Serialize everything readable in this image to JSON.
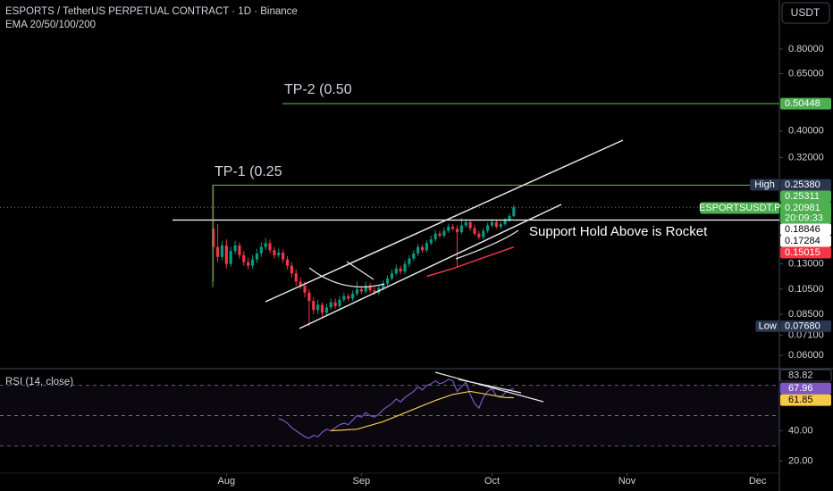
{
  "chart_data": {
    "type": "candlestick",
    "title": "ESPORTS / TetherUS PERPETUAL CONTRACT · 1D · Binance",
    "indicator": "EMA 20/50/100/200",
    "currency": "USDT",
    "log": true,
    "up_color": "#089981",
    "down_color": "#f23645",
    "xlim": [
      -49,
      130
    ],
    "xticks": [
      {
        "value": 3,
        "label": "Aug"
      },
      {
        "value": 34,
        "label": "Sep"
      },
      {
        "value": 64,
        "label": "Oct"
      },
      {
        "value": 95,
        "label": "Nov"
      },
      {
        "value": 125,
        "label": "Dec"
      }
    ],
    "ylim": [
      0.054,
      1.212
    ],
    "yticks": [
      {
        "value": 0.8,
        "label": "0.80000"
      },
      {
        "value": 0.65,
        "label": "0.65000"
      },
      {
        "value": 0.4,
        "label": "0.40000"
      },
      {
        "value": 0.32,
        "label": "0.32000"
      },
      {
        "value": 0.13,
        "label": "0.13000"
      },
      {
        "value": 0.105,
        "label": "0.10500"
      },
      {
        "value": 0.085,
        "label": "0.08500"
      },
      {
        "value": 0.071,
        "label": "0.07100"
      },
      {
        "value": 0.06,
        "label": "0.06000"
      }
    ],
    "categories": [
      null,
      null,
      null,
      null,
      null,
      null,
      null,
      null,
      null,
      null,
      null,
      null,
      null,
      null,
      null,
      null,
      null,
      null,
      null,
      null,
      null,
      null,
      null,
      null,
      null,
      null,
      null,
      null,
      null,
      null,
      null,
      null,
      null,
      null,
      null,
      null,
      null,
      null,
      null,
      null,
      null,
      null,
      null,
      null,
      null,
      null,
      null,
      null,
      null,
      null,
      null,
      null,
      null,
      null,
      null,
      null,
      null,
      null,
      null,
      null,
      null,
      null,
      null,
      null,
      null,
      null,
      null,
      null,
      null,
      null
    ],
    "open": [
      0.175,
      0.15,
      0.138,
      0.152,
      0.13,
      0.145,
      0.152,
      0.14,
      0.132,
      0.128,
      0.135,
      0.142,
      0.15,
      0.155,
      0.146,
      0.14,
      0.143,
      0.135,
      0.128,
      0.12,
      0.112,
      0.108,
      0.102,
      0.095,
      0.088,
      0.092,
      0.086,
      0.09,
      0.094,
      0.091,
      0.096,
      0.099,
      0.097,
      0.101,
      0.105,
      0.103,
      0.108,
      0.104,
      0.102,
      0.106,
      0.11,
      0.115,
      0.12,
      0.125,
      0.122,
      0.13,
      0.136,
      0.142,
      0.15,
      0.146,
      0.155,
      0.16,
      0.168,
      0.165,
      0.172,
      0.178,
      0.175,
      0.17,
      0.18,
      0.185,
      0.176,
      0.168,
      0.163,
      0.172,
      0.18,
      0.185,
      0.178,
      0.182,
      0.188,
      0.195
    ],
    "high": [
      0.2538,
      0.182,
      0.158,
      0.16,
      0.15,
      0.158,
      0.156,
      0.145,
      0.137,
      0.14,
      0.148,
      0.156,
      0.162,
      0.16,
      0.15,
      0.148,
      0.147,
      0.139,
      0.132,
      0.124,
      0.116,
      0.112,
      0.105,
      0.098,
      0.096,
      0.094,
      0.093,
      0.097,
      0.097,
      0.099,
      0.102,
      0.101,
      0.104,
      0.112,
      0.108,
      0.112,
      0.111,
      0.107,
      0.109,
      0.113,
      0.118,
      0.124,
      0.129,
      0.128,
      0.134,
      0.14,
      0.146,
      0.154,
      0.153,
      0.159,
      0.165,
      0.173,
      0.172,
      0.177,
      0.183,
      0.182,
      0.18,
      0.192,
      0.19,
      0.189,
      0.181,
      0.172,
      0.176,
      0.184,
      0.19,
      0.189,
      0.186,
      0.192,
      0.199,
      0.214
    ],
    "low": [
      0.112,
      0.132,
      0.134,
      0.125,
      0.127,
      0.141,
      0.136,
      0.128,
      0.124,
      0.125,
      0.131,
      0.138,
      0.146,
      0.142,
      0.136,
      0.137,
      0.131,
      0.124,
      0.116,
      0.108,
      0.105,
      0.098,
      0.0768,
      0.085,
      0.085,
      0.083,
      0.084,
      0.088,
      0.089,
      0.089,
      0.094,
      0.095,
      0.095,
      0.099,
      0.101,
      0.101,
      0.102,
      0.1,
      0.1,
      0.104,
      0.108,
      0.113,
      0.118,
      0.119,
      0.119,
      0.127,
      0.133,
      0.139,
      0.143,
      0.143,
      0.152,
      0.157,
      0.162,
      0.162,
      0.169,
      0.172,
      0.126,
      0.167,
      0.177,
      0.172,
      0.165,
      0.16,
      0.16,
      0.169,
      0.177,
      0.175,
      0.175,
      0.179,
      0.185,
      0.193
    ],
    "close": [
      0.15,
      0.138,
      0.152,
      0.13,
      0.145,
      0.152,
      0.14,
      0.132,
      0.128,
      0.135,
      0.142,
      0.15,
      0.155,
      0.146,
      0.14,
      0.143,
      0.135,
      0.128,
      0.12,
      0.112,
      0.108,
      0.102,
      0.095,
      0.088,
      0.092,
      0.086,
      0.09,
      0.094,
      0.091,
      0.096,
      0.099,
      0.097,
      0.101,
      0.105,
      0.103,
      0.108,
      0.104,
      0.102,
      0.106,
      0.11,
      0.115,
      0.12,
      0.125,
      0.122,
      0.13,
      0.136,
      0.142,
      0.15,
      0.146,
      0.155,
      0.16,
      0.168,
      0.165,
      0.172,
      0.178,
      0.175,
      0.17,
      0.18,
      0.185,
      0.176,
      0.168,
      0.163,
      0.172,
      0.18,
      0.185,
      0.178,
      0.182,
      0.188,
      0.195,
      0.20981
    ],
    "ema": {
      "color": "#f23645",
      "x": [
        49,
        55,
        62,
        69
      ],
      "values": [
        0.117,
        0.125,
        0.137,
        0.15
      ]
    },
    "levels": [
      {
        "value": 0.50448,
        "label": "0.50448",
        "color": "#4caf50",
        "line": true
      },
      {
        "tag": "High",
        "value": 0.2538,
        "label": "0.25380",
        "color": "#2a3550"
      },
      {
        "value": 0.25311,
        "label": "0.25311",
        "color": "#4caf50",
        "line": true
      },
      {
        "tag": "ESPORTSUSDT.P",
        "value": 0.20981,
        "label": "0.20981",
        "countdown": "20:09:33",
        "color": "#4caf50"
      },
      {
        "value": 0.18846,
        "label": "0.18846",
        "color": "#ffffff",
        "line": true
      },
      {
        "value": 0.17284,
        "label": "0.17284",
        "color": "#ffffff"
      },
      {
        "value": 0.15015,
        "label": "0.15015",
        "color": "#f23645"
      },
      {
        "tag": "Low",
        "value": 0.0768,
        "label": "0.07680",
        "color": "#2a3550"
      }
    ],
    "annotations": [
      "TP-2 (0.50",
      "TP-1 (0.25",
      "Support Hold Above is Rocket"
    ],
    "rsi": {
      "title": "RSI (14, close)",
      "color": "#7e57c2",
      "ylim": [
        12,
        81
      ],
      "yticks": [
        {
          "value": 40,
          "label": "40.00"
        },
        {
          "value": 20,
          "label": "20.00"
        }
      ],
      "bands": [
        70,
        50,
        30
      ],
      "upper": 83.82,
      "values": [
        null,
        null,
        null,
        null,
        null,
        null,
        null,
        null,
        null,
        null,
        null,
        null,
        null,
        null,
        null,
        48,
        47,
        45,
        42,
        40,
        38,
        36,
        35,
        37,
        36,
        39,
        41,
        40,
        42,
        44,
        45,
        44,
        47,
        50,
        49,
        52,
        50,
        49,
        51,
        54,
        56,
        58,
        61,
        59,
        62,
        64,
        66,
        69,
        67,
        70,
        71,
        73,
        71,
        72,
        74,
        73,
        66,
        69,
        72,
        64,
        58,
        55,
        62,
        66,
        68,
        63,
        62,
        65,
        67,
        67.96
      ],
      "ma_color": "#f7c948",
      "ma_x": [
        27,
        33,
        39,
        45,
        51,
        55,
        59,
        63,
        67,
        69
      ],
      "ma_values": [
        40,
        41,
        46,
        53,
        60,
        64,
        66,
        64,
        62,
        61.85
      ]
    }
  }
}
